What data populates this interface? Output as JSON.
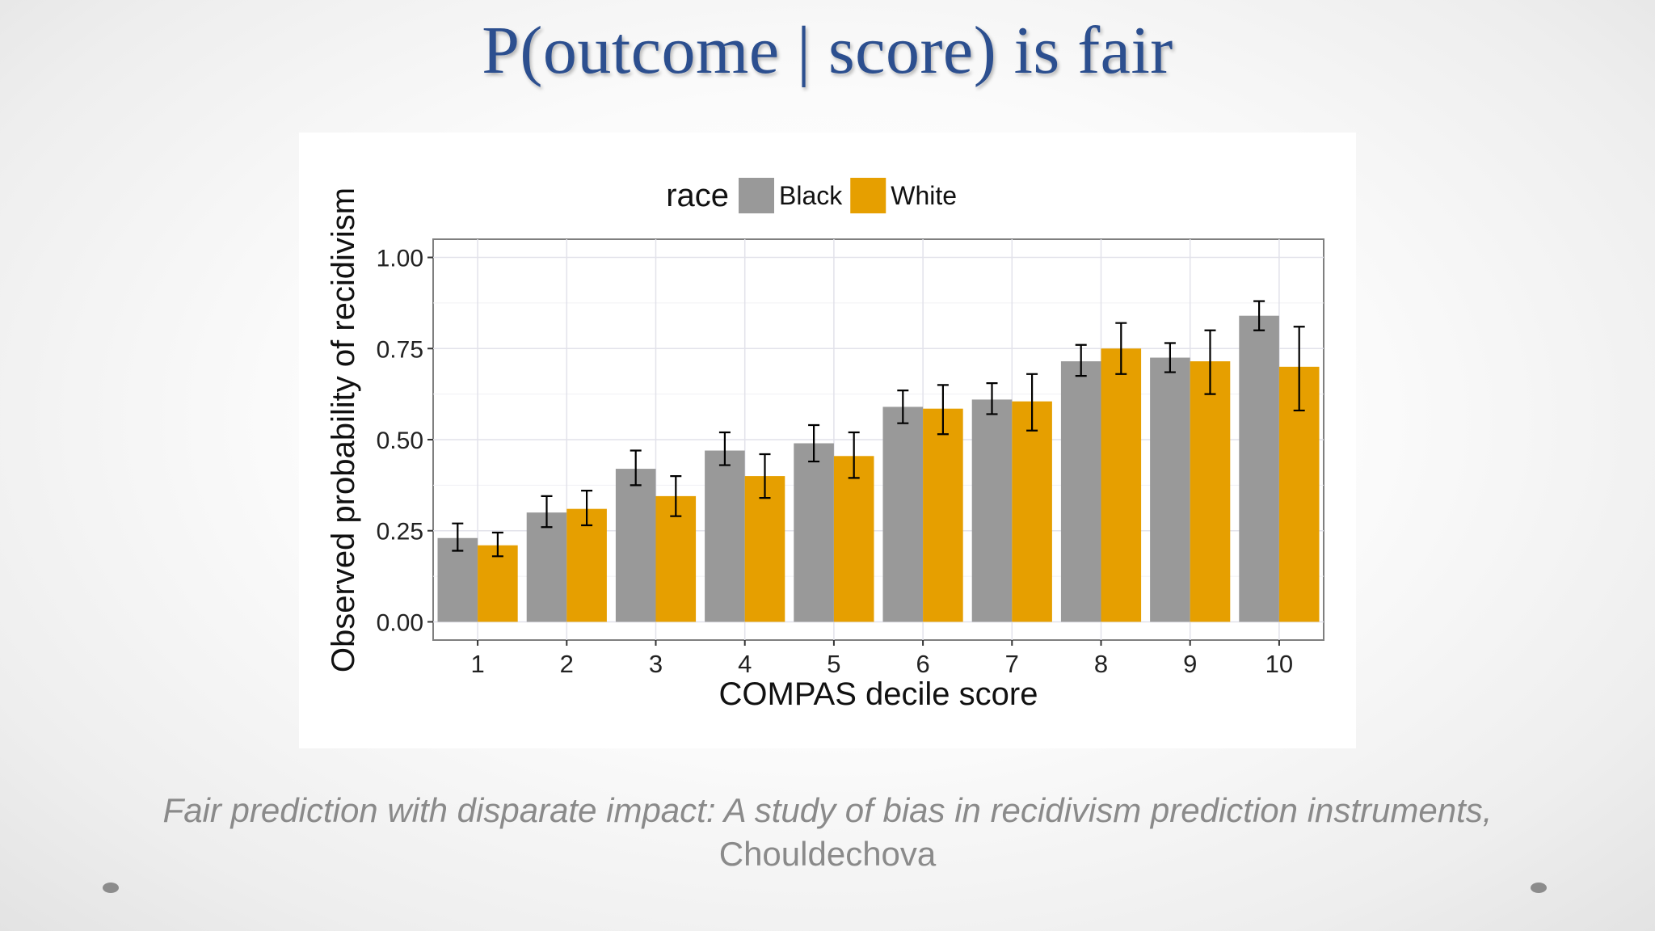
{
  "slide": {
    "title": "P(outcome | score) is fair",
    "caption_title": "Fair prediction with disparate impact: A study of bias in recidivism prediction instruments,",
    "caption_author": "Chouldechova"
  },
  "chart_data": {
    "type": "bar",
    "xlabel": "COMPAS decile score",
    "ylabel": "Observed probability of recidivism",
    "legend_title": "race",
    "legend_position": "top",
    "grid": true,
    "ylim": [
      -0.05,
      1.05
    ],
    "yticks": [
      "0.00",
      "0.25",
      "0.50",
      "0.75",
      "1.00"
    ],
    "categories": [
      "1",
      "2",
      "3",
      "4",
      "5",
      "6",
      "7",
      "8",
      "9",
      "10"
    ],
    "series": [
      {
        "name": "Black",
        "color": "#999999",
        "values": [
          0.23,
          0.3,
          0.42,
          0.47,
          0.49,
          0.59,
          0.61,
          0.715,
          0.725,
          0.84
        ],
        "error_low": [
          0.195,
          0.26,
          0.375,
          0.43,
          0.44,
          0.545,
          0.57,
          0.675,
          0.685,
          0.8
        ],
        "error_high": [
          0.27,
          0.345,
          0.47,
          0.52,
          0.54,
          0.635,
          0.655,
          0.76,
          0.765,
          0.88
        ]
      },
      {
        "name": "White",
        "color": "#e69f00",
        "values": [
          0.21,
          0.31,
          0.345,
          0.4,
          0.455,
          0.585,
          0.605,
          0.75,
          0.715,
          0.7
        ],
        "error_low": [
          0.18,
          0.265,
          0.29,
          0.34,
          0.395,
          0.515,
          0.525,
          0.68,
          0.625,
          0.58
        ],
        "error_high": [
          0.245,
          0.36,
          0.4,
          0.46,
          0.52,
          0.65,
          0.68,
          0.82,
          0.8,
          0.81
        ]
      }
    ]
  }
}
